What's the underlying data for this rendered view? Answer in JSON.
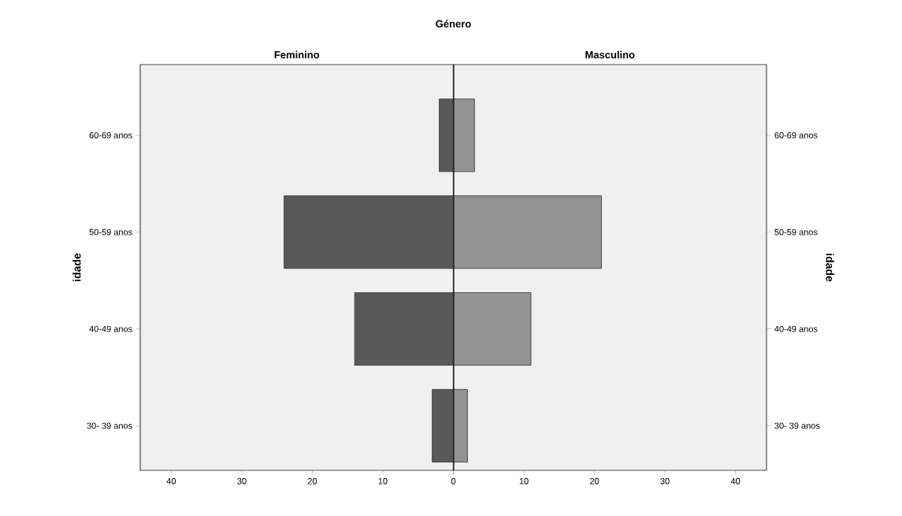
{
  "chart_data": [
    {
      "type": "bar",
      "orientation": "horizontal",
      "title": "Feminino",
      "ylabel": "idade",
      "annotations": [
        "Género"
      ],
      "categories": [
        "60-69 anos",
        "50-59 anos",
        "40-49 anos",
        "30- 39 anos"
      ],
      "values": [
        2,
        24,
        14,
        3
      ],
      "color": "#595959",
      "xlim": [
        44.4,
        0
      ],
      "xticks": [
        40,
        30,
        20,
        10,
        {
          "value": 0,
          "label": null
        }
      ]
    },
    {
      "type": "bar",
      "orientation": "horizontal",
      "title": "Masculino",
      "y2label": "idade",
      "y2_categories": [
        "60-69 anos",
        "50-59 anos",
        "40-49 anos",
        "30- 39 anos"
      ],
      "values": [
        3,
        21,
        11,
        2
      ],
      "color": "#939393",
      "xlim": [
        0,
        44.4
      ],
      "xticks": [
        0,
        10,
        20,
        30,
        40
      ]
    }
  ]
}
